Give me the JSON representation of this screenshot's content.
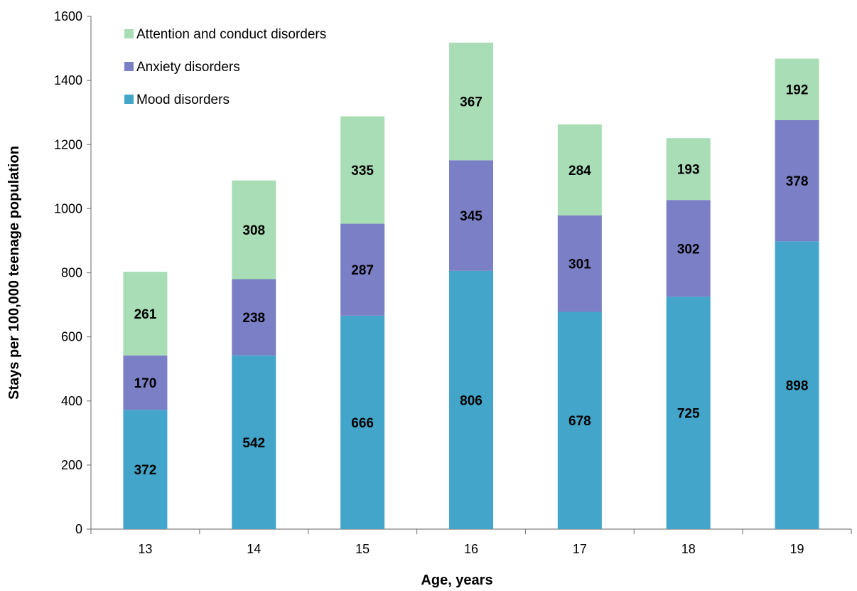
{
  "chart_data": {
    "type": "bar",
    "stacked": true,
    "categories": [
      "13",
      "14",
      "15",
      "16",
      "17",
      "18",
      "19"
    ],
    "series": [
      {
        "name": "Mood disorders",
        "values": [
          372,
          542,
          666,
          806,
          678,
          725,
          898
        ],
        "color": "#42A5C9"
      },
      {
        "name": "Anxiety disorders",
        "values": [
          170,
          238,
          287,
          345,
          301,
          302,
          378
        ],
        "color": "#7B7FC5"
      },
      {
        "name": "Attention and conduct disorders",
        "values": [
          261,
          308,
          335,
          367,
          284,
          193,
          192
        ],
        "color": "#A8DDB5"
      }
    ],
    "xlabel": "Age, years",
    "ylabel": "Stays per 100,000 teenage population",
    "ylim": [
      0,
      1600
    ],
    "yticks": [
      0,
      200,
      400,
      600,
      800,
      1000,
      1200,
      1400,
      1600
    ],
    "grid": false,
    "legend": {
      "position": "top-left",
      "order": [
        "Attention and conduct disorders",
        "Anxiety disorders",
        "Mood disorders"
      ]
    }
  }
}
